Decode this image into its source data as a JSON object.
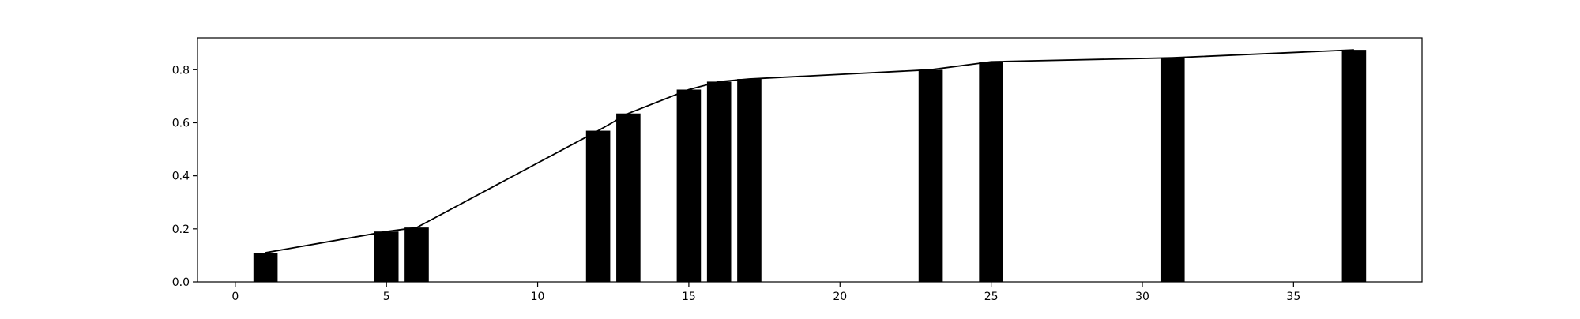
{
  "chart_data": {
    "type": "bar",
    "title": "",
    "xlabel": "",
    "ylabel": "",
    "xlim": [
      -1.25,
      39.25
    ],
    "ylim": [
      0,
      0.92
    ],
    "x": [
      1,
      5,
      6,
      12,
      13,
      15,
      16,
      17,
      23,
      25,
      31,
      37
    ],
    "values": [
      0.11,
      0.19,
      0.205,
      0.57,
      0.635,
      0.725,
      0.755,
      0.765,
      0.8,
      0.83,
      0.845,
      0.875
    ],
    "line_values": [
      0.11,
      0.19,
      0.205,
      0.57,
      0.635,
      0.725,
      0.755,
      0.765,
      0.8,
      0.83,
      0.845,
      0.875
    ],
    "x_ticks": [
      0,
      5,
      10,
      15,
      20,
      25,
      30,
      35
    ],
    "y_ticks": [
      0.0,
      0.2,
      0.4,
      0.6,
      0.8
    ],
    "y_tick_labels": [
      "0.0",
      "0.2",
      "0.4",
      "0.6",
      "0.8"
    ],
    "bar_color": "#000000",
    "line_color": "#000000",
    "grid": false,
    "legend": "none"
  }
}
